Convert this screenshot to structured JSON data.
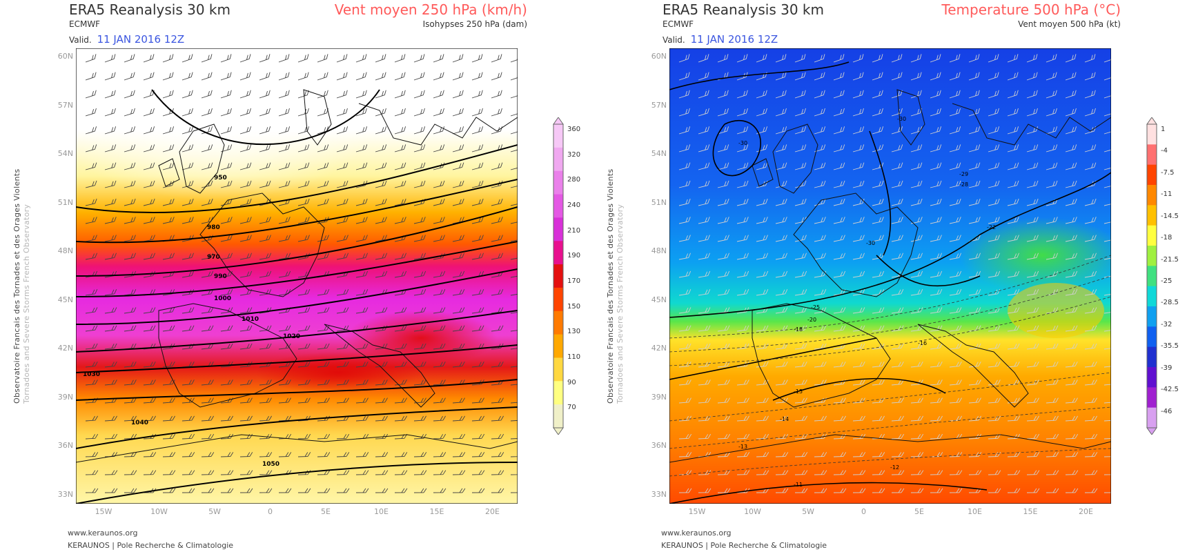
{
  "left_panel": {
    "title": "ERA5 Reanalysis 30 km",
    "source": "ECMWF",
    "valid_label": "Valid.",
    "valid_date": "11 JAN 2016 12Z",
    "parameter": "Vent moyen 250 hPa (km/h)",
    "subparameter": "Isohypses 250 hPa (dam)",
    "colorbar_labels": [
      "360",
      "320",
      "280",
      "240",
      "210",
      "190",
      "170",
      "150",
      "130",
      "110",
      "90",
      "70"
    ],
    "colorbar_colors": [
      "#f6c8f6",
      "#f0a8f0",
      "#ea80ea",
      "#e458e4",
      "#d830d8",
      "#e8108e",
      "#e41010",
      "#ff4400",
      "#ff7a00",
      "#ffa800",
      "#ffd840",
      "#ffff80",
      "#f0f0c8"
    ],
    "contour_labels": [
      "950",
      "980",
      "970",
      "990",
      "1000",
      "1010",
      "1020",
      "1030",
      "1040",
      "1050"
    ]
  },
  "right_panel": {
    "title": "ERA5 Reanalysis 30 km",
    "source": "ECMWF",
    "valid_label": "Valid.",
    "valid_date": "11 JAN 2016 12Z",
    "parameter": "Temperature 500 hPa (°C)",
    "subparameter": "Vent moyen 500 hPa (kt)",
    "colorbar_labels": [
      "1",
      "-4",
      "-7.5",
      "-11",
      "-14.5",
      "-18",
      "-21.5",
      "-25",
      "-28.5",
      "-32",
      "-35.5",
      "-39",
      "-42.5",
      "-46"
    ],
    "colorbar_colors": [
      "#ffe0e0",
      "#ff7070",
      "#ff4400",
      "#ff8800",
      "#ffc000",
      "#ffff40",
      "#a0f040",
      "#40e080",
      "#10d8d8",
      "#10a0f0",
      "#1060f0",
      "#2030d0",
      "#6010d0",
      "#a020d0",
      "#d8a0f0"
    ],
    "contour_labels": [
      "-30",
      "-30",
      "-30",
      "-29",
      "-28",
      "-25",
      "-22",
      "-20",
      "-18",
      "-16",
      "-15",
      "-14",
      "-13",
      "-12",
      "-11"
    ]
  },
  "latitudes": [
    "60N",
    "57N",
    "54N",
    "51N",
    "48N",
    "45N",
    "42N",
    "39N",
    "36N",
    "33N"
  ],
  "longitudes": [
    "15W",
    "10W",
    "5W",
    "0",
    "5E",
    "10E",
    "15E",
    "20E"
  ],
  "side_text_primary": "Observatoire Francais des Tornades et des Orages Violents",
  "side_text_secondary": "Tornadoes and Severe Storms French Observatory",
  "footer_url": "www.keraunos.org",
  "footer_org": "KERAUNOS | Pole Recherche & Climatologie"
}
